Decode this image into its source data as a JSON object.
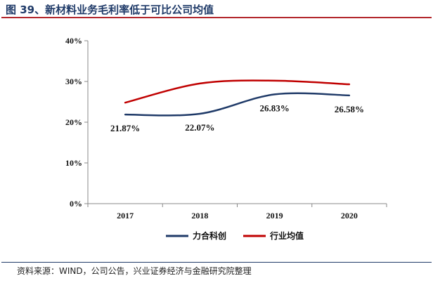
{
  "figure": {
    "title": "图 39、新材料业务毛利率低于可比公司均值",
    "source": "资料来源：WIND，公司公告，兴业证券经济与金融研究院整理"
  },
  "chart_data": {
    "type": "line",
    "title": "",
    "xlabel": "",
    "ylabel": "",
    "categories": [
      "2017",
      "2018",
      "2019",
      "2020"
    ],
    "ylim": [
      0,
      40
    ],
    "yticks": [
      "0%",
      "10%",
      "20%",
      "30%",
      "40%"
    ],
    "legend_position": "bottom",
    "series": [
      {
        "name": "力合科创",
        "color": "#1f3a68",
        "values": [
          21.87,
          22.07,
          26.83,
          26.58
        ],
        "labels": [
          "21.87%",
          "22.07%",
          "26.83%",
          "26.58%"
        ]
      },
      {
        "name": "行业均值",
        "color": "#c00000",
        "values": [
          24.8,
          29.5,
          30.2,
          29.3
        ],
        "labels": []
      }
    ]
  }
}
